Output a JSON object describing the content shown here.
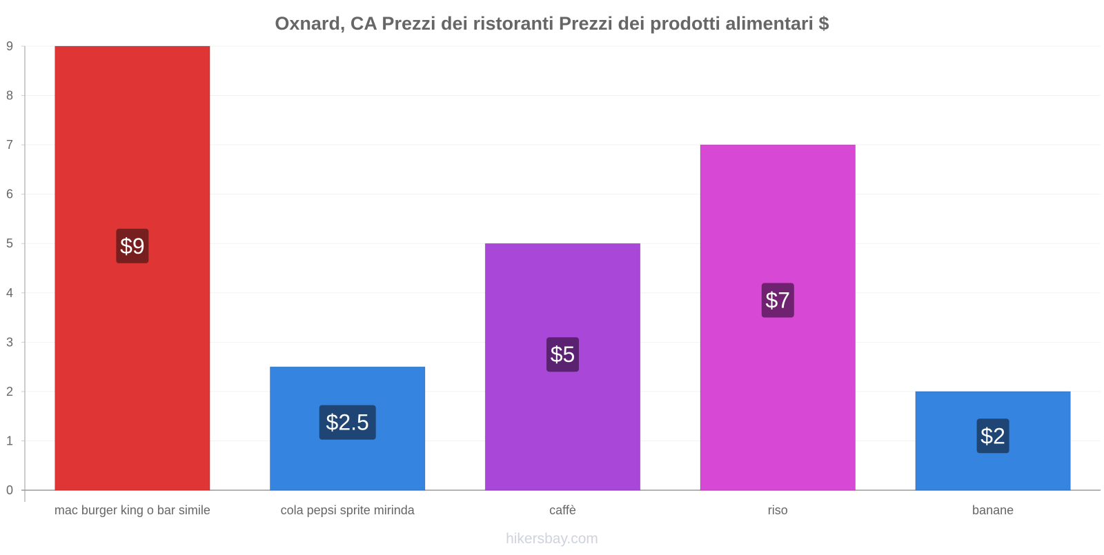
{
  "watermark": "hikersbay.com",
  "chart_data": {
    "type": "bar",
    "title": "Oxnard, CA Prezzi dei ristoranti Prezzi dei prodotti alimentari $",
    "xlabel": "",
    "ylabel": "",
    "ylim": [
      0,
      9
    ],
    "yticks": [
      0,
      1,
      2,
      3,
      4,
      5,
      6,
      7,
      8,
      9
    ],
    "grid": true,
    "categories": [
      "mac burger king o bar simile",
      "cola pepsi sprite mirinda",
      "caffè",
      "riso",
      "banane"
    ],
    "values": [
      9,
      2.5,
      5,
      7,
      2
    ],
    "value_labels": [
      "$9",
      "$2.5",
      "$5",
      "$7",
      "$2"
    ],
    "bar_colors": [
      "#e03535",
      "#3584e0",
      "#a947d8",
      "#d748d4",
      "#3584e0"
    ],
    "label_bg_colors": [
      "#771e1e",
      "#1e4574",
      "#5c2272",
      "#6f2270",
      "#1e4574"
    ]
  }
}
